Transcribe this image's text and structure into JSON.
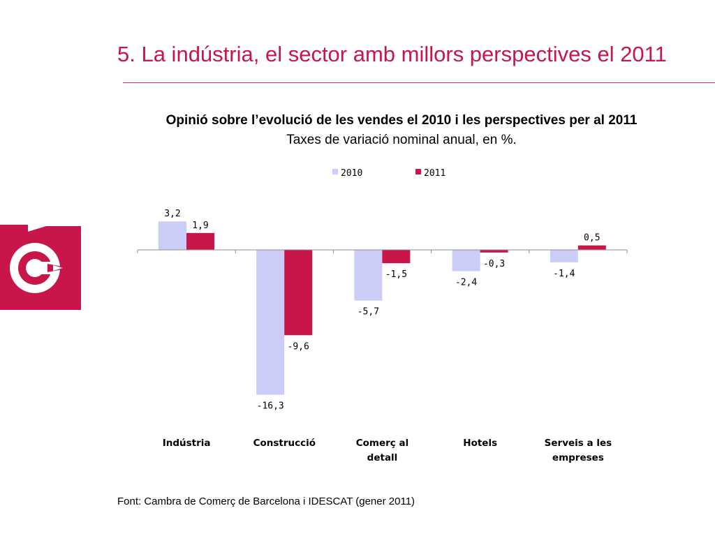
{
  "slide": {
    "title": "5. La indústria, el sector amb millors perspectives el 2011",
    "source": "Font: Cambra de Comerç de Barcelona i IDESCAT (gener 2011)",
    "accent_color": "#c8164a",
    "logo_icon": "cambra-logo-icon"
  },
  "chart_data": {
    "type": "bar",
    "title": "Opinió sobre l’evolució de les vendes el 2010 i les perspectives per al 2011",
    "subtitle": "Taxes de variació nominal anual, en %.",
    "categories": [
      [
        "Indústria"
      ],
      [
        "Construcció"
      ],
      [
        "Comerç al",
        "detall"
      ],
      [
        "Hotels"
      ],
      [
        "Serveis a les",
        "empreses"
      ]
    ],
    "series": [
      {
        "name": "2010",
        "color": "#ccccf8",
        "values": [
          3.2,
          -16.3,
          -5.7,
          -2.4,
          -1.4
        ],
        "labels": [
          "3,2",
          "-16,3",
          "-5,7",
          "-2,4",
          "-1,4"
        ]
      },
      {
        "name": "2011",
        "color": "#c8164a",
        "values": [
          1.9,
          -9.6,
          -1.5,
          -0.3,
          0.5
        ],
        "labels": [
          "1,9",
          "-9,6",
          "-1,5",
          "-0,3",
          "0,5"
        ]
      }
    ],
    "legend_position": "top",
    "grid": false
  }
}
